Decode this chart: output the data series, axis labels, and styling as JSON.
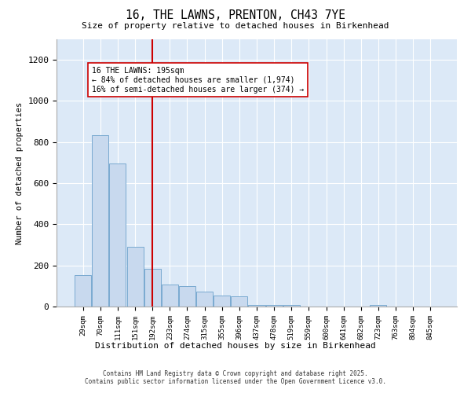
{
  "title": "16, THE LAWNS, PRENTON, CH43 7YE",
  "subtitle": "Size of property relative to detached houses in Birkenhead",
  "xlabel": "Distribution of detached houses by size in Birkenhead",
  "ylabel": "Number of detached properties",
  "bar_color": "#c8d9ee",
  "bar_edge_color": "#7aaad0",
  "plot_bg_color": "#dce9f7",
  "categories": [
    "29sqm",
    "70sqm",
    "111sqm",
    "151sqm",
    "192sqm",
    "233sqm",
    "274sqm",
    "315sqm",
    "355sqm",
    "396sqm",
    "437sqm",
    "478sqm",
    "519sqm",
    "559sqm",
    "600sqm",
    "641sqm",
    "682sqm",
    "723sqm",
    "763sqm",
    "804sqm",
    "845sqm"
  ],
  "values": [
    152,
    833,
    697,
    291,
    183,
    107,
    101,
    72,
    55,
    48,
    6,
    6,
    6,
    0,
    0,
    0,
    0,
    6,
    0,
    0,
    0
  ],
  "vline_x": 4.5,
  "vline_color": "#cc0000",
  "annotation_text": "16 THE LAWNS: 195sqm\n← 84% of detached houses are smaller (1,974)\n16% of semi-detached houses are larger (374) →",
  "ylim": [
    0,
    1300
  ],
  "yticks": [
    0,
    200,
    400,
    600,
    800,
    1000,
    1200
  ],
  "footnote": "Contains HM Land Registry data © Crown copyright and database right 2025.\nContains public sector information licensed under the Open Government Licence v3.0."
}
